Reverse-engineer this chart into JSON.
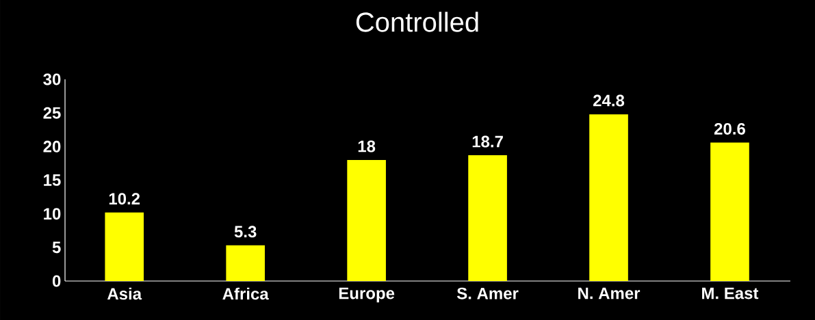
{
  "chart_data": {
    "type": "bar",
    "title": "Controlled",
    "categories": [
      "Asia",
      "Africa",
      "Europe",
      "S. Amer",
      "N. Amer",
      "M. East"
    ],
    "values": [
      10.2,
      5.3,
      18,
      18.7,
      24.8,
      20.6
    ],
    "color": "#ffff00",
    "ylim": [
      0,
      30
    ],
    "yticks": [
      0,
      5,
      10,
      15,
      20,
      25,
      30
    ],
    "data_labels": true
  }
}
